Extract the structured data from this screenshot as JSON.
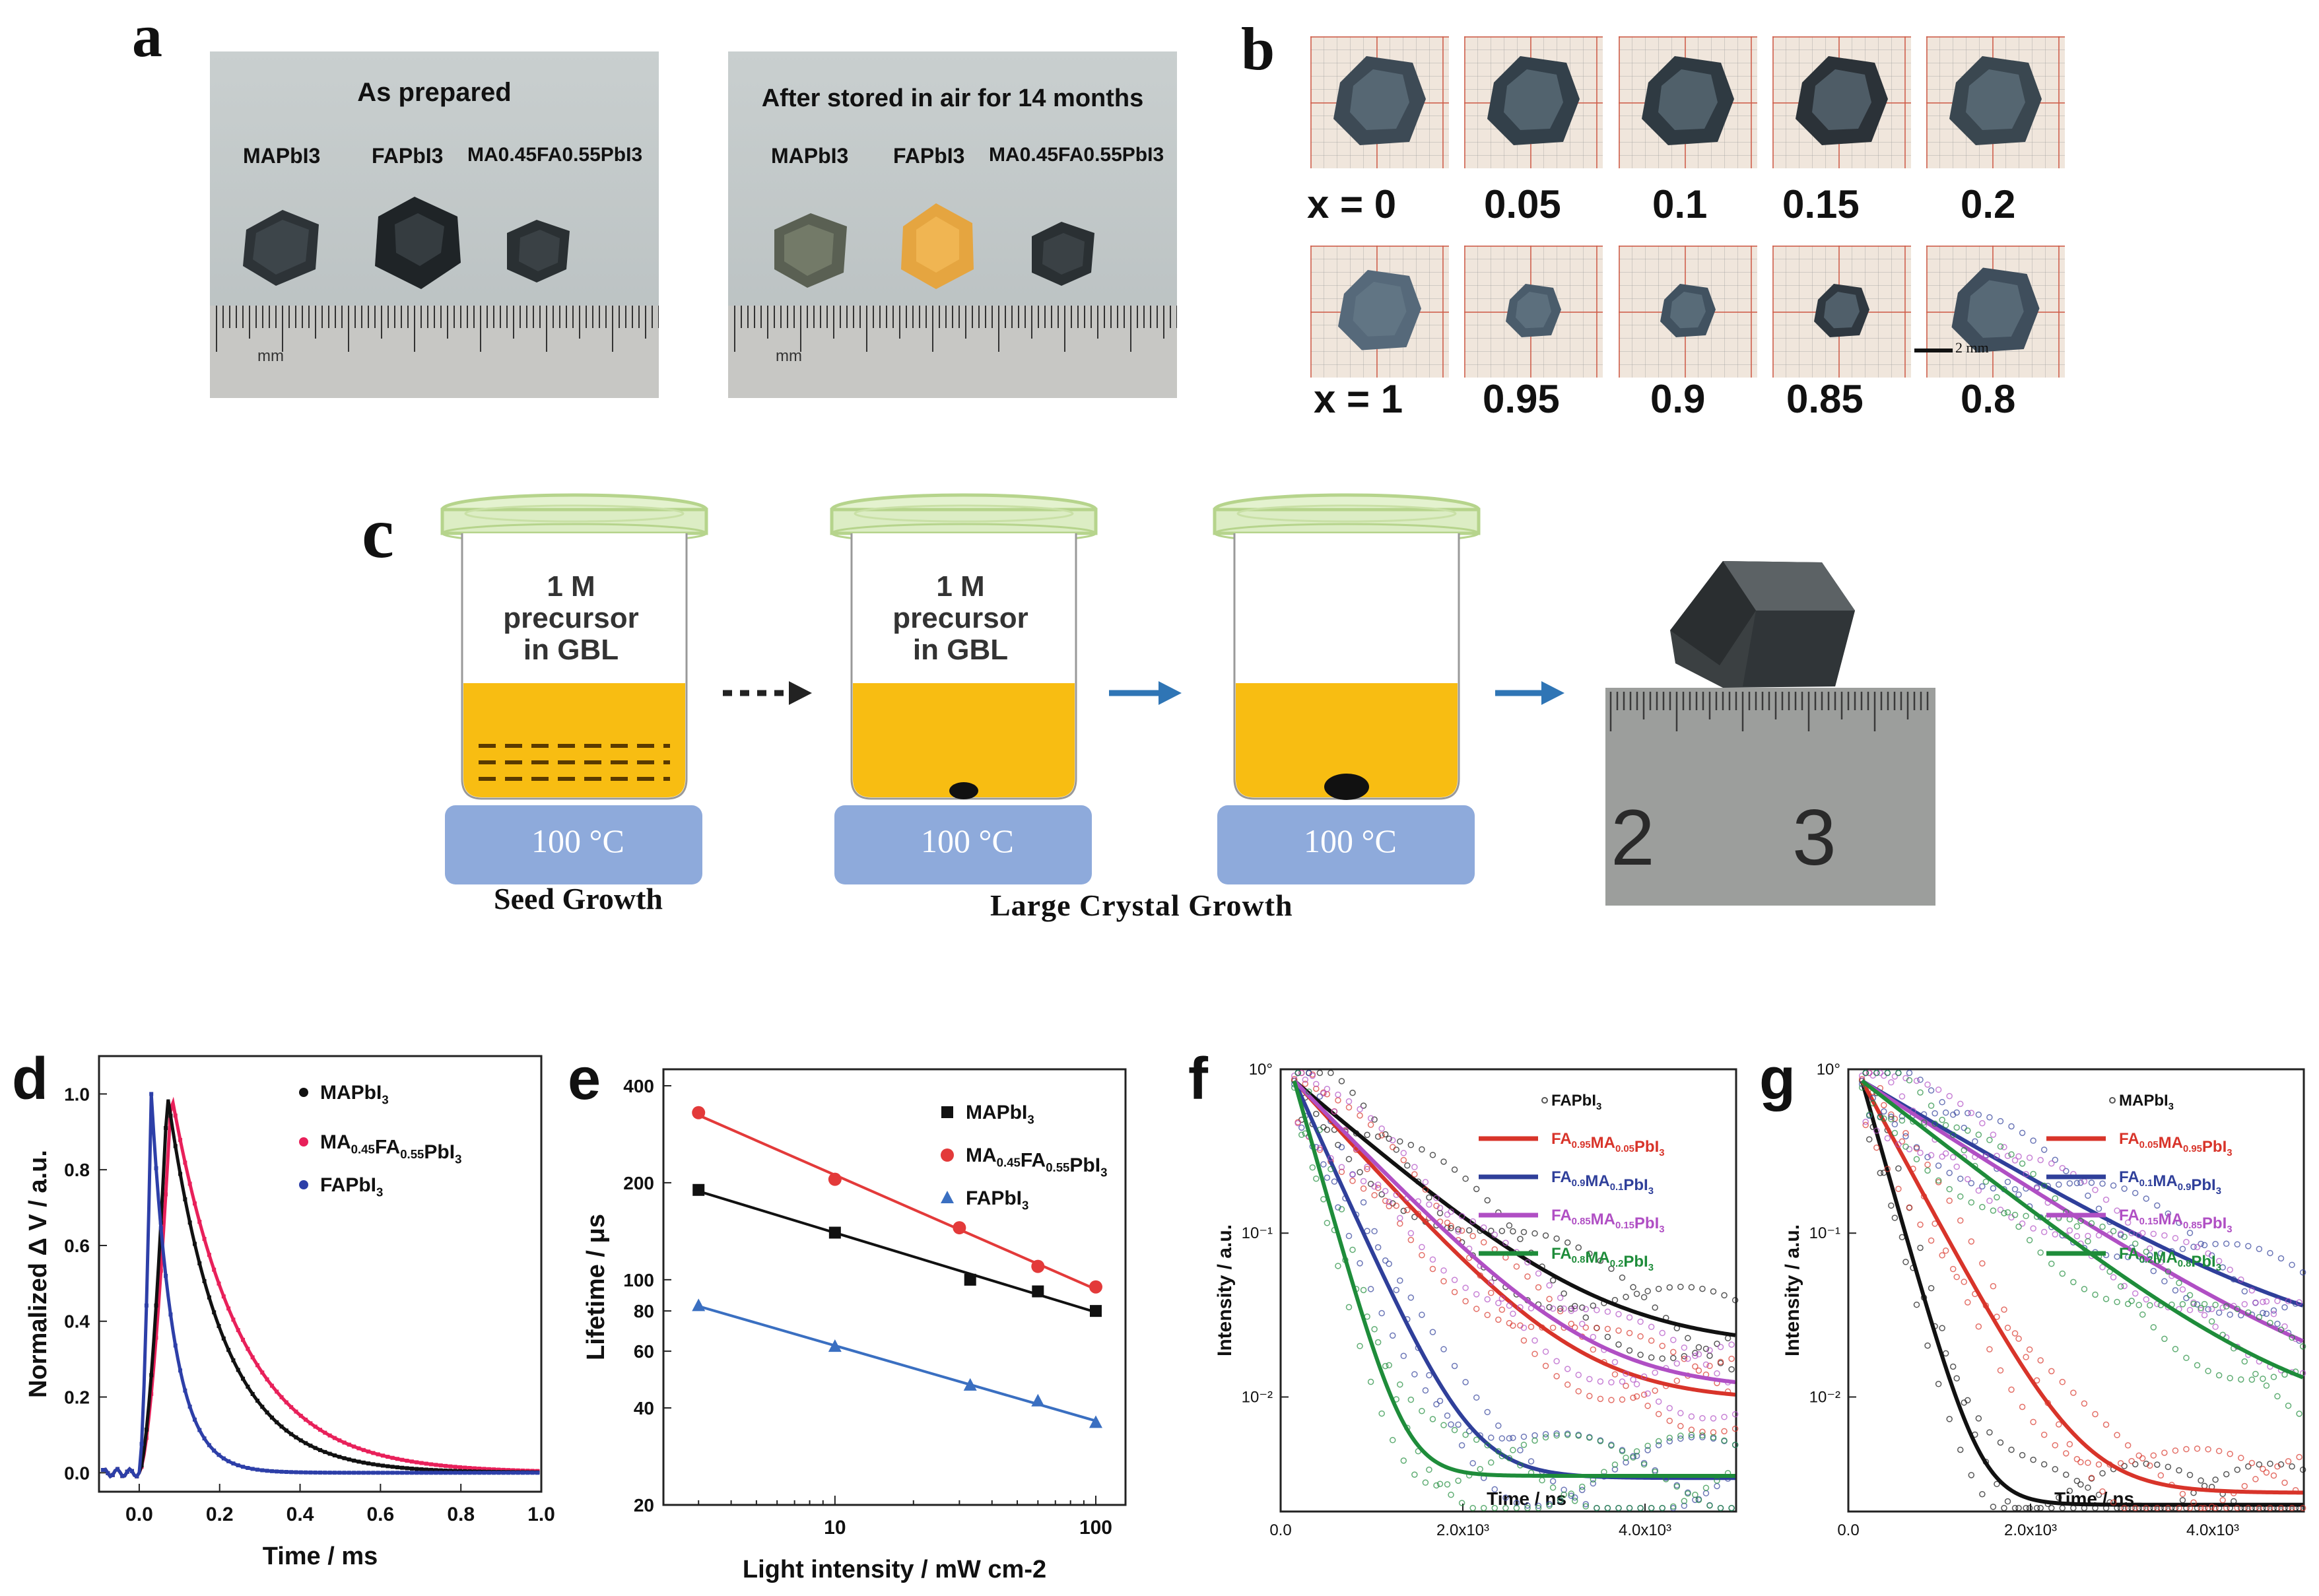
{
  "panel_letters": {
    "a": "a",
    "b": "b",
    "c": "c",
    "d": "d",
    "e": "e",
    "f": "f",
    "g": "g"
  },
  "panel_a": {
    "left": {
      "title": "As prepared",
      "labels": [
        "MAPbI3",
        "FAPbI3",
        "MA0.45FA0.55PbI3"
      ],
      "ruler_unit": "mm"
    },
    "right": {
      "title": "After stored in air for 14 months",
      "labels": [
        "MAPbI3",
        "FAPbI3",
        "MA0.45FA0.55PbI3"
      ],
      "ruler_unit": "mm"
    }
  },
  "panel_b": {
    "top_row": [
      "x = 0",
      "0.05",
      "0.1",
      "0.15",
      "0.2"
    ],
    "bottom_row": [
      "x = 1",
      "0.95",
      "0.9",
      "0.85",
      "0.8"
    ],
    "scale_bar": "2 mm"
  },
  "panel_c": {
    "beaker_text_line1": "1 M",
    "beaker_text_line2": "precursor",
    "beaker_text_line3": "in GBL",
    "hotplate_temp": "100 °C",
    "stage1_caption": "Seed Growth",
    "stage2_caption": "Large Crystal Growth",
    "ruler_numbers": [
      "2",
      "3"
    ]
  },
  "colors": {
    "solution": "#f8bd12",
    "hotplate": "#8eaadb",
    "arrow": "#2f75b5",
    "black_series": "#111111",
    "red_series": "#e8205a",
    "blue_series": "#2d3fa8"
  },
  "chart_data": [
    {
      "id": "d",
      "type": "line",
      "xlabel": "Time / ms",
      "ylabel": "Normalized Δ V / a.u.",
      "xlim": [
        -0.1,
        1.0
      ],
      "ylim": [
        -0.05,
        1.1
      ],
      "xticks": [
        "0.0",
        "0.2",
        "0.4",
        "0.6",
        "0.8",
        "1.0"
      ],
      "yticks": [
        "0.0",
        "0.2",
        "0.4",
        "0.6",
        "0.8",
        "1.0"
      ],
      "series": [
        {
          "name": "MAPbI3",
          "legend": "MAPbI",
          "legend_sub": "3",
          "peak_x": 0.07,
          "tau": 0.135
        },
        {
          "name": "MA0.45FA0.55PbI3",
          "legend": "MA0.45FA0.55PbI3",
          "peak_x": 0.08,
          "tau": 0.17
        },
        {
          "name": "FAPbI3",
          "legend": "FAPbI3",
          "peak_x": 0.03,
          "tau": 0.055
        }
      ]
    },
    {
      "id": "e",
      "type": "scatter",
      "xscale": "log",
      "yscale": "log",
      "xlabel": "Light intensity / mW cm-2",
      "ylabel": "Lifetime / μs",
      "xlim": [
        2.2,
        130
      ],
      "ylim": [
        20,
        450
      ],
      "xticks": [
        "10",
        "100"
      ],
      "yticks": [
        "20",
        "40",
        "60",
        "80",
        "100",
        "200",
        "400"
      ],
      "series": [
        {
          "name": "MAPbI3",
          "x": [
            3,
            10,
            33,
            60,
            100
          ],
          "y": [
            190,
            140,
            100,
            92,
            80
          ]
        },
        {
          "name": "MA0.45FA0.55PbI3",
          "x": [
            3,
            10,
            30,
            60,
            100
          ],
          "y": [
            330,
            205,
            145,
            110,
            95
          ]
        },
        {
          "name": "FAPbI3",
          "x": [
            3,
            10,
            33,
            60,
            100
          ],
          "y": [
            83,
            62,
            47,
            42,
            36
          ]
        }
      ]
    },
    {
      "id": "f",
      "type": "line",
      "yscale": "log",
      "xlabel": "Time / ns",
      "ylabel": "Intensity / a.u.",
      "xlim": [
        0,
        5000
      ],
      "ylim": [
        0.002,
        1
      ],
      "xticks": [
        "0.0",
        "2.0x10³",
        "4.0x10³"
      ],
      "yticks": [
        "10°",
        "10⁻¹",
        "10⁻²"
      ],
      "series": [
        {
          "name": "FAPbI3",
          "color": "#111111",
          "tail": 0.02,
          "tau": 900
        },
        {
          "name": "FA0.95MA0.05PbI3",
          "color": "#d8342a",
          "tail": 0.0095,
          "tau": 700
        },
        {
          "name": "FA0.9MA0.1PbI3",
          "color": "#2f3f9a",
          "tail": 0.0032,
          "tau": 350
        },
        {
          "name": "FA0.85MA0.15PbI3",
          "color": "#b04fc4",
          "tail": 0.011,
          "tau": 750
        },
        {
          "name": "FA0.8MA0.2PbI3",
          "color": "#1e8c3a",
          "tail": 0.0033,
          "tau": 220
        }
      ]
    },
    {
      "id": "g",
      "type": "line",
      "yscale": "log",
      "xlabel": "Time / ns",
      "ylabel": "Intensity / a.u.",
      "xlim": [
        0,
        5000
      ],
      "ylim": [
        0.002,
        1
      ],
      "xticks": [
        "0.0",
        "2.0x10³",
        "4.0x10³"
      ],
      "yticks": [
        "10°",
        "10⁻¹",
        "10⁻²"
      ],
      "series": [
        {
          "name": "MAPbI3",
          "color": "#111111",
          "tail": 0.0022,
          "tau": 220
        },
        {
          "name": "FA0.05MA0.95PbI3",
          "color": "#d8342a",
          "tail": 0.0026,
          "tau": 420
        },
        {
          "name": "FA0.1MA0.9PbI3",
          "color": "#2f3f9a",
          "tail": 0.016,
          "tau": 1300
        },
        {
          "name": "FA0.15MA0.85PbI3",
          "color": "#b04fc4",
          "tail": 0.007,
          "tau": 1200
        },
        {
          "name": "FA0.2MA0.8PbI3",
          "color": "#1e8c3a",
          "tail": 0.0065,
          "tau": 1000
        }
      ]
    }
  ],
  "legend_text": {
    "d": [
      "MAPbI3",
      "MA0.45FA0.55PbI3",
      "FAPbI3"
    ],
    "e": [
      "MAPbI3",
      "MA0.45FA0.55PbI3",
      "FAPbI3"
    ],
    "f": [
      "FAPbI3",
      "FA0.95MA0.05PbI3",
      "FA0.9MA0.1PbI3",
      "FA0.85MA0.15PbI3",
      "FA0.8MA0.2PbI3"
    ],
    "g": [
      "MAPbI3",
      "FA0.05MA0.95PbI3",
      "FA0.1MA0.9PbI3",
      "FA0.15MA0.85PbI3",
      "FA0.2MA0.8PbI3"
    ]
  }
}
